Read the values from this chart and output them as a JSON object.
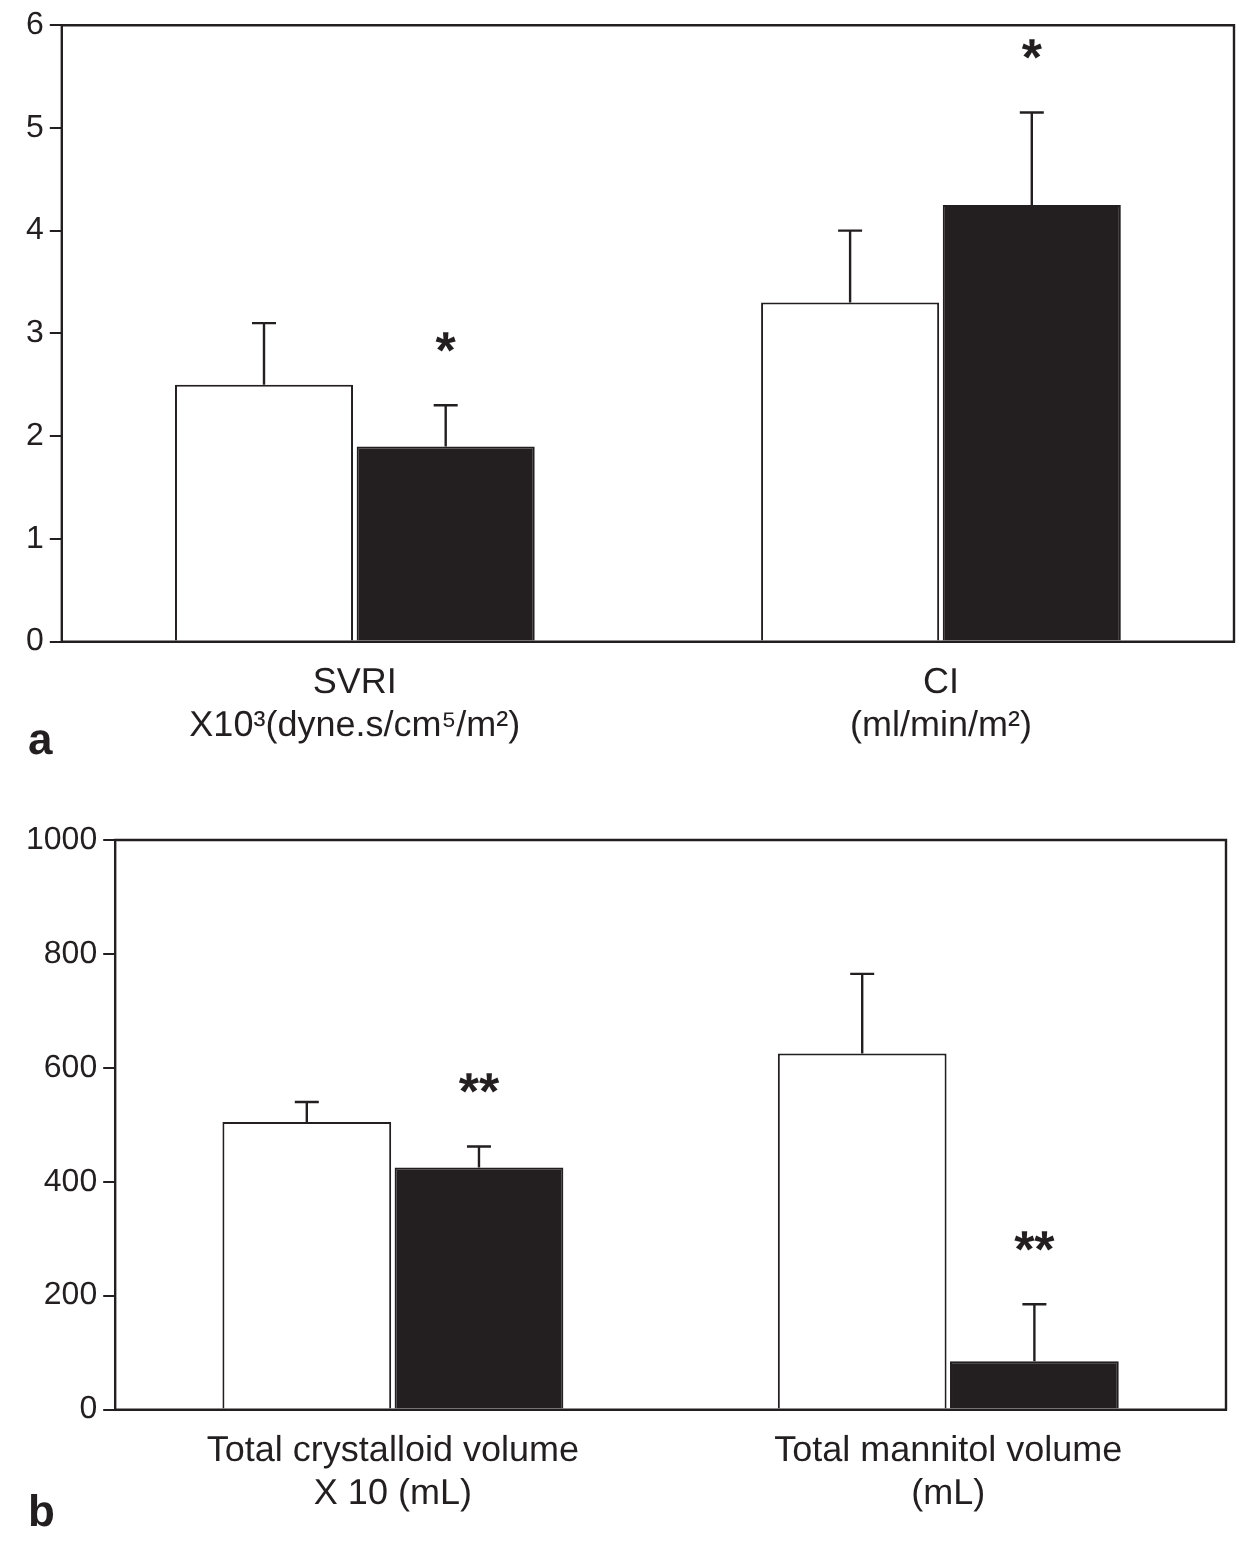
{
  "chart_data": [
    {
      "type": "bar",
      "categories": [
        "SVRI\nX10³(dyne.s/cm⁵/m²)",
        "CI\n(ml/min/m²)"
      ],
      "series": [
        {
          "color": "#ffffff",
          "values": [
            2.5,
            3.3
          ],
          "errors": [
            [
              2.5,
              3.1
            ],
            [
              3.3,
              4.0
            ]
          ]
        },
        {
          "color": "#231f20",
          "values": [
            1.9,
            4.25
          ],
          "errors": [
            [
              1.9,
              2.3
            ],
            [
              4.25,
              5.15
            ]
          ]
        }
      ],
      "ylim": [
        0,
        6
      ],
      "yticks": [
        0,
        1,
        2,
        3,
        4,
        5,
        6
      ],
      "grid": false,
      "legend": false,
      "annotations": [
        "a",
        "*",
        "*"
      ]
    },
    {
      "type": "bar",
      "categories": [
        "Total crystalloid volume\nX 10 (mL)",
        "Total mannitol volume\n(mL)"
      ],
      "series": [
        {
          "color": "#ffffff",
          "values": [
            505,
            625
          ],
          "errors": [
            [
              505,
              540
            ],
            [
              625,
              765
            ]
          ]
        },
        {
          "color": "#231f20",
          "values": [
            425,
            85
          ],
          "errors": [
            [
              425,
              462
            ],
            [
              85,
              185
            ]
          ]
        }
      ],
      "ylim": [
        0,
        1000
      ],
      "yticks": [
        0,
        200,
        400,
        600,
        800,
        1000
      ],
      "grid": false,
      "legend": false,
      "annotations": [
        "b",
        "**",
        "**"
      ]
    }
  ]
}
